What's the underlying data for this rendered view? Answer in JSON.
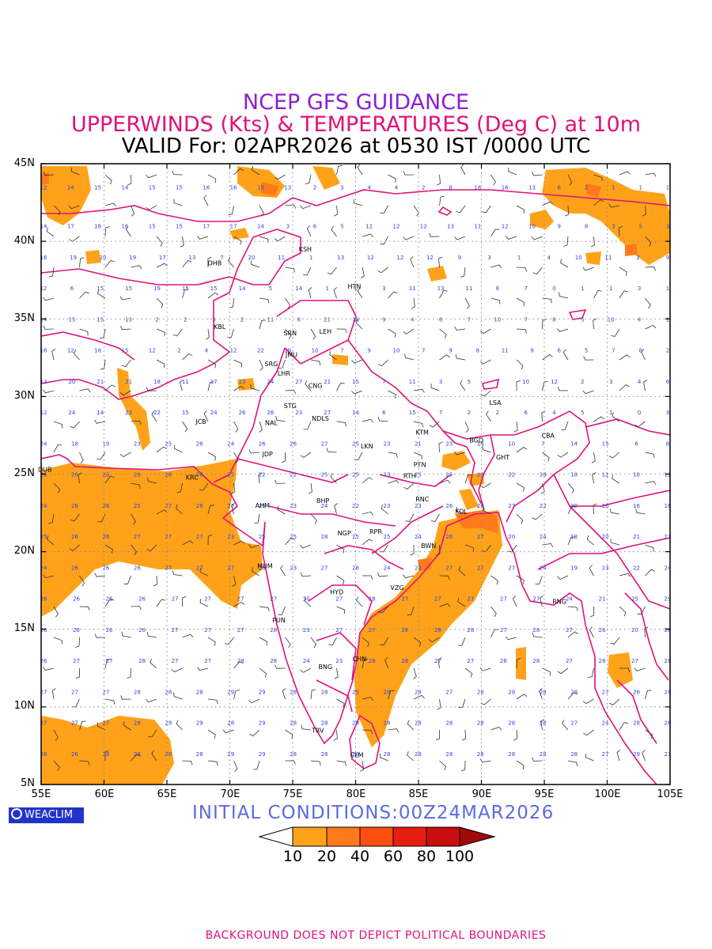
{
  "header": {
    "title1": "NCEP GFS GUIDANCE",
    "title2": "UPPERWINDS (Kts) & TEMPERATURES (Deg C) at 10m",
    "title3": "VALID For: 02APR2026 at 0530 IST /0000 UTC"
  },
  "axes": {
    "lat_labels": [
      "45N",
      "40N",
      "35N",
      "30N",
      "25N",
      "20N",
      "15N",
      "10N",
      "5N"
    ],
    "lon_labels": [
      "55E",
      "60E",
      "65E",
      "70E",
      "75E",
      "80E",
      "85E",
      "90E",
      "95E",
      "100E",
      "105E"
    ]
  },
  "stations": [
    {
      "code": "KSH",
      "lon": 76.0,
      "lat": 39.5
    },
    {
      "code": "DHB",
      "lon": 68.8,
      "lat": 38.6
    },
    {
      "code": "HTN",
      "lon": 79.9,
      "lat": 37.1
    },
    {
      "code": "KBL",
      "lon": 69.2,
      "lat": 34.5
    },
    {
      "code": "SRN",
      "lon": 74.8,
      "lat": 34.1
    },
    {
      "code": "LEH",
      "lon": 77.6,
      "lat": 34.2
    },
    {
      "code": "JMU",
      "lon": 74.9,
      "lat": 32.7
    },
    {
      "code": "SRG",
      "lon": 73.3,
      "lat": 32.1
    },
    {
      "code": "LHR",
      "lon": 74.3,
      "lat": 31.5
    },
    {
      "code": "CNG",
      "lon": 76.8,
      "lat": 30.7
    },
    {
      "code": "STG",
      "lon": 74.8,
      "lat": 29.4
    },
    {
      "code": "LSA",
      "lon": 91.1,
      "lat": 29.6
    },
    {
      "code": "JCB",
      "lon": 67.7,
      "lat": 28.4
    },
    {
      "code": "NAL",
      "lon": 73.3,
      "lat": 28.3
    },
    {
      "code": "NDLS",
      "lon": 77.2,
      "lat": 28.6
    },
    {
      "code": "KTM",
      "lon": 85.3,
      "lat": 27.7
    },
    {
      "code": "BGD",
      "lon": 89.6,
      "lat": 27.2
    },
    {
      "code": "CBA",
      "lon": 95.3,
      "lat": 27.5
    },
    {
      "code": "JDP",
      "lon": 73.0,
      "lat": 26.3
    },
    {
      "code": "LKN",
      "lon": 80.9,
      "lat": 26.8
    },
    {
      "code": "GHT",
      "lon": 91.7,
      "lat": 26.1
    },
    {
      "code": "PTN",
      "lon": 85.1,
      "lat": 25.6
    },
    {
      "code": "DUB",
      "lon": 55.3,
      "lat": 25.3
    },
    {
      "code": "KRC",
      "lon": 67.0,
      "lat": 24.8
    },
    {
      "code": "RTH",
      "lon": 84.3,
      "lat": 24.9
    },
    {
      "code": "AHM",
      "lon": 72.6,
      "lat": 23.0
    },
    {
      "code": "BHP",
      "lon": 77.4,
      "lat": 23.3
    },
    {
      "code": "RNC",
      "lon": 85.3,
      "lat": 23.4
    },
    {
      "code": "KOL",
      "lon": 88.4,
      "lat": 22.6
    },
    {
      "code": "NGP",
      "lon": 79.1,
      "lat": 21.2
    },
    {
      "code": "RPR",
      "lon": 81.6,
      "lat": 21.3
    },
    {
      "code": "BWN",
      "lon": 85.8,
      "lat": 20.4
    },
    {
      "code": "MUM",
      "lon": 72.8,
      "lat": 19.1
    },
    {
      "code": "HYD",
      "lon": 78.5,
      "lat": 17.4
    },
    {
      "code": "VZG",
      "lon": 83.3,
      "lat": 17.7
    },
    {
      "code": "RNG",
      "lon": 96.2,
      "lat": 16.8
    },
    {
      "code": "PUN",
      "lon": 73.9,
      "lat": 15.6
    },
    {
      "code": "CHN",
      "lon": 80.3,
      "lat": 13.1
    },
    {
      "code": "BNG",
      "lon": 77.6,
      "lat": 12.6
    },
    {
      "code": "TRV",
      "lon": 77.0,
      "lat": 8.5
    },
    {
      "code": "CLM",
      "lon": 80.1,
      "lat": 6.9
    }
  ],
  "temperature_rows": [
    {
      "lat": 43.5,
      "values": [
        "12",
        "14",
        "15",
        "14",
        "15",
        "15",
        "16",
        "16",
        "15",
        "13",
        "2",
        "3",
        "4",
        "4",
        "2",
        "8",
        "16",
        "16",
        "13",
        "6",
        "2",
        "1",
        "1",
        "1"
      ]
    },
    {
      "lat": 41.0,
      "values": [
        "14",
        "17",
        "18",
        "16",
        "15",
        "15",
        "17",
        "17",
        "14",
        "3",
        "6",
        "5",
        "12",
        "12",
        "12",
        "13",
        "11",
        "12",
        "10",
        "9",
        "8",
        "3",
        "5",
        "3"
      ]
    },
    {
      "lat": 39.0,
      "values": [
        "16",
        "19",
        "20",
        "19",
        "17",
        "13",
        "7",
        "20",
        "11",
        "1",
        "13",
        "12",
        "12",
        "12",
        "9",
        "3",
        "1",
        "4",
        "10",
        "11",
        "2",
        "9"
      ]
    },
    {
      "lat": 37.0,
      "values": [
        "12",
        "6",
        "15",
        "15",
        "19",
        "15",
        "15",
        "14",
        "5",
        "14",
        "1",
        "1",
        "3",
        "11",
        "13",
        "11",
        "8",
        "7",
        "0",
        "1",
        "1",
        "3",
        "1"
      ]
    },
    {
      "lat": 35.0,
      "values": [
        "14",
        "15",
        "15",
        "13",
        "2",
        "2",
        "3",
        "2",
        "11",
        "6",
        "21",
        "18",
        "9",
        "4",
        "6",
        "7",
        "10",
        "7",
        "8",
        "5",
        "10",
        "4",
        "1"
      ]
    },
    {
      "lat": 33.0,
      "values": [
        "16",
        "12",
        "18",
        "15",
        "12",
        "2",
        "4",
        "12",
        "22",
        "19",
        "10",
        "7",
        "9",
        "10",
        "7",
        "9",
        "8",
        "11",
        "9",
        "6",
        "5",
        "7",
        "8",
        "2"
      ]
    },
    {
      "lat": 31.0,
      "values": [
        "12",
        "20",
        "21",
        "21",
        "18",
        "11",
        "17",
        "23",
        "24",
        "27",
        "21",
        "15",
        "7",
        "11",
        "3",
        "5",
        "7",
        "10",
        "12",
        "2",
        "3",
        "4",
        "6"
      ]
    },
    {
      "lat": 29.0,
      "values": [
        "12",
        "24",
        "14",
        "23",
        "22",
        "15",
        "24",
        "26",
        "26",
        "23",
        "27",
        "14",
        "6",
        "15",
        "7",
        "2",
        "2",
        "6",
        "4",
        "5",
        "1",
        "0",
        "3"
      ]
    },
    {
      "lat": 27.0,
      "values": [
        "24",
        "18",
        "19",
        "23",
        "25",
        "26",
        "24",
        "26",
        "26",
        "27",
        "25",
        "23",
        "21",
        "23",
        "14",
        "10",
        "7",
        "14",
        "15",
        "6",
        "8"
      ]
    },
    {
      "lat": 25.0,
      "values": [
        "26",
        "26",
        "26",
        "26",
        "28",
        "28",
        "25",
        "22",
        "22",
        "25",
        "25",
        "23",
        "25",
        "25",
        "23",
        "22",
        "18",
        "18",
        "12",
        "10",
        "12"
      ]
    },
    {
      "lat": 23.0,
      "values": [
        "24",
        "26",
        "26",
        "25",
        "27",
        "26",
        "27",
        "25",
        "23",
        "24",
        "22",
        "23",
        "23",
        "26",
        "24",
        "27",
        "22",
        "20",
        "16",
        "16",
        "16"
      ]
    },
    {
      "lat": 21.0,
      "values": [
        "25",
        "26",
        "26",
        "27",
        "27",
        "27",
        "23",
        "25",
        "25",
        "28",
        "25",
        "25",
        "24",
        "26",
        "27",
        "20",
        "24",
        "18",
        "20",
        "21",
        "21"
      ]
    },
    {
      "lat": 19.0,
      "values": [
        "24",
        "26",
        "26",
        "26",
        "27",
        "27",
        "27",
        "26",
        "23",
        "27",
        "28",
        "24",
        "23",
        "27",
        "27",
        "27",
        "24",
        "19",
        "23",
        "22",
        "24"
      ]
    },
    {
      "lat": 17.0,
      "values": [
        "26",
        "26",
        "26",
        "26",
        "27",
        "27",
        "27",
        "27",
        "30",
        "27",
        "28",
        "27",
        "27",
        "27",
        "27",
        "27",
        "24",
        "21",
        "25",
        "29"
      ]
    },
    {
      "lat": 15.0,
      "values": [
        "26",
        "26",
        "26",
        "26",
        "27",
        "27",
        "27",
        "28",
        "23",
        "27",
        "27",
        "28",
        "28",
        "28",
        "27",
        "28",
        "27",
        "26",
        "20",
        "28"
      ]
    },
    {
      "lat": 13.0,
      "values": [
        "26",
        "27",
        "27",
        "28",
        "27",
        "27",
        "28",
        "28",
        "24",
        "23",
        "28",
        "28",
        "27",
        "27",
        "28",
        "28",
        "27",
        "28",
        "27",
        "28"
      ]
    },
    {
      "lat": 11.0,
      "values": [
        "27",
        "27",
        "27",
        "28",
        "28",
        "28",
        "29",
        "29",
        "28",
        "28",
        "25",
        "28",
        "28",
        "27",
        "28",
        "28",
        "28",
        "28",
        "27",
        "26",
        "28"
      ]
    },
    {
      "lat": 9.0,
      "values": [
        "27",
        "27",
        "27",
        "28",
        "29",
        "29",
        "28",
        "29",
        "28",
        "28",
        "28",
        "28",
        "28",
        "28",
        "28",
        "28",
        "28",
        "27",
        "24",
        "28",
        "28"
      ]
    },
    {
      "lat": 7.0,
      "values": [
        "28",
        "26",
        "28",
        "28",
        "28",
        "28",
        "29",
        "29",
        "28",
        "28",
        "28",
        "28",
        "28",
        "28",
        "28",
        "28",
        "28",
        "28",
        "27",
        "29",
        "27"
      ]
    }
  ],
  "legend": {
    "labels": [
      "10",
      "20",
      "40",
      "60",
      "80",
      "100"
    ],
    "colors": [
      "#ffa21a",
      "#ff7a1a",
      "#ff4e12",
      "#e61e10",
      "#c80e0e",
      "#a00a0a"
    ]
  },
  "logo_text": "WEACLIM",
  "initial_conditions": "INITIAL CONDITIONS:00Z24MAR2026",
  "footer": "BACKGROUND DOES NOT DEPICT POLITICAL BOUNDARIES"
}
